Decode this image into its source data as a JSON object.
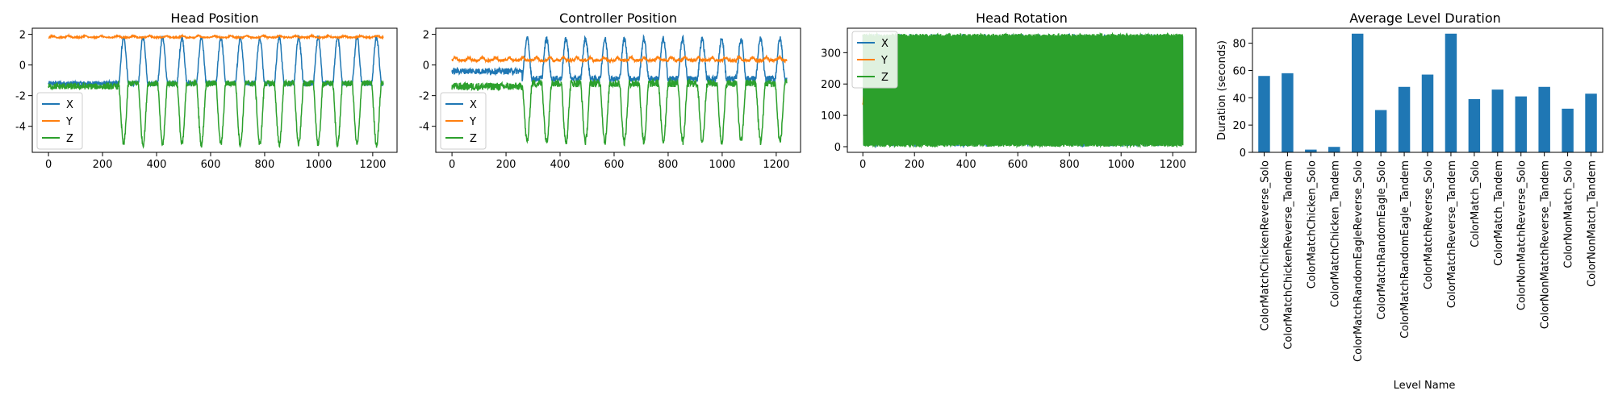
{
  "colors": {
    "X": "#1f77b4",
    "Y": "#ff7f0e",
    "Z": "#2ca02c",
    "bar": "#1f77b4"
  },
  "chart_data": [
    {
      "type": "line",
      "title": "Head Position",
      "xlabel": "",
      "ylabel": "",
      "xlim": [
        -60,
        1290
      ],
      "ylim": [
        -5.7,
        2.4
      ],
      "xticks": [
        0,
        200,
        400,
        600,
        800,
        1000,
        1200
      ],
      "yticks": [
        2,
        0,
        -2,
        -4
      ],
      "legend": "lower-left",
      "series": [
        {
          "name": "X",
          "pattern": {
            "baseline": -1.2,
            "amp": 3.0,
            "period": 72,
            "start": 260,
            "noise": 0.15,
            "pre": -1.2
          },
          "x": [
            0,
            100,
            200,
            260,
            290,
            330,
            370,
            400,
            500,
            600,
            700,
            800,
            900,
            1000,
            1100,
            1200,
            1230
          ],
          "y": [
            -1.2,
            -1.3,
            -1.1,
            -1.0,
            1.9,
            -0.8,
            1.5,
            -1.0,
            1.9,
            -0.8,
            1.6,
            -1.0,
            1.7,
            -0.9,
            1.6,
            0.4,
            -1.2
          ]
        },
        {
          "name": "Y",
          "pattern": {
            "baseline": 1.8,
            "amp": 0.1,
            "period": 60,
            "start": 0,
            "noise": 0.04,
            "pre": 1.8
          },
          "x": [
            0,
            200,
            400,
            600,
            800,
            1000,
            1200,
            1230
          ],
          "y": [
            1.8,
            1.85,
            1.85,
            1.9,
            1.85,
            1.85,
            1.8,
            1.8
          ]
        },
        {
          "name": "Z",
          "pattern": {
            "baseline": -1.2,
            "amp": -4.0,
            "period": 72,
            "start": 260,
            "noise": 0.2,
            "pre": -1.4
          },
          "x": [
            0,
            100,
            200,
            260,
            300,
            340,
            380,
            440,
            500,
            600,
            700,
            800,
            900,
            1000,
            1100,
            1200,
            1230
          ],
          "y": [
            -0.5,
            -1.4,
            -1.3,
            -1.3,
            -5.0,
            -1.0,
            -5.0,
            -1.3,
            -5.3,
            -1.2,
            -5.1,
            -1.2,
            -5.2,
            -1.3,
            -5.3,
            -4.8,
            -1.2
          ]
        }
      ]
    },
    {
      "type": "line",
      "title": "Controller Position",
      "xlabel": "",
      "ylabel": "",
      "xlim": [
        -60,
        1290
      ],
      "ylim": [
        -5.7,
        2.4
      ],
      "xticks": [
        0,
        200,
        400,
        600,
        800,
        1000,
        1200
      ],
      "yticks": [
        2,
        0,
        -2,
        -4
      ],
      "legend": "lower-left",
      "series": [
        {
          "name": "X",
          "pattern": {
            "baseline": -0.9,
            "amp": 2.6,
            "period": 72,
            "start": 260,
            "noise": 0.2,
            "pre": -0.4
          },
          "x": [
            0,
            100,
            200,
            280,
            320,
            400,
            500,
            600,
            700,
            800,
            900,
            1000,
            1100,
            1200,
            1230
          ],
          "y": [
            -1.2,
            -0.5,
            -0.3,
            1.9,
            -0.6,
            1.4,
            -0.8,
            1.6,
            -0.8,
            1.7,
            -0.7,
            1.5,
            -0.8,
            1.0,
            -1.2
          ]
        },
        {
          "name": "Y",
          "pattern": {
            "baseline": 0.3,
            "amp": 0.2,
            "period": 50,
            "start": 0,
            "noise": 0.08,
            "pre": 0.5
          },
          "x": [
            0,
            200,
            400,
            600,
            800,
            1000,
            1200,
            1230
          ],
          "y": [
            0.5,
            0.6,
            0.3,
            0.3,
            0.3,
            0.2,
            0.5,
            0.1
          ]
        },
        {
          "name": "Z",
          "pattern": {
            "baseline": -1.2,
            "amp": -3.8,
            "period": 72,
            "start": 260,
            "noise": 0.25,
            "pre": -1.4
          },
          "x": [
            0,
            100,
            200,
            280,
            320,
            400,
            500,
            600,
            700,
            800,
            900,
            1000,
            1100,
            1200,
            1230
          ],
          "y": [
            -1.3,
            -1.5,
            -1.3,
            -4.8,
            -1.1,
            -4.9,
            -1.0,
            -5.0,
            -1.1,
            -5.0,
            -1.2,
            -5.2,
            -1.1,
            -5.0,
            -1.1
          ]
        }
      ]
    },
    {
      "type": "line",
      "title": "Head Rotation",
      "xlabel": "",
      "ylabel": "",
      "xlim": [
        -60,
        1290
      ],
      "ylim": [
        -18,
        378
      ],
      "xticks": [
        0,
        200,
        400,
        600,
        800,
        1000,
        1200
      ],
      "yticks": [
        300,
        200,
        100,
        0
      ],
      "legend": "upper-left",
      "series": [
        {
          "name": "X",
          "pattern": {
            "kind": "wrap",
            "low": [
              0,
              60
            ],
            "high": [
              300,
              360
            ],
            "start": 0
          },
          "x": [
            0,
            50,
            100,
            200,
            400,
            600,
            800,
            1000,
            1100,
            1200,
            1230
          ],
          "y": [
            40,
            50,
            20,
            10,
            5,
            10,
            5,
            10,
            350,
            10,
            30
          ]
        },
        {
          "name": "Y",
          "pattern": {
            "kind": "wander",
            "center": 150,
            "spread": 60,
            "start": 0
          },
          "x": [
            0,
            100,
            200,
            400,
            500,
            600,
            800,
            1000,
            1200,
            1230
          ],
          "y": [
            170,
            100,
            130,
            150,
            190,
            150,
            170,
            150,
            140,
            160
          ]
        },
        {
          "name": "Z",
          "pattern": {
            "kind": "wrap",
            "low": [
              0,
              10
            ],
            "high": [
              350,
              360
            ],
            "start": 0
          },
          "x": [
            0,
            100,
            200,
            400,
            600,
            800,
            1000,
            1200,
            1230
          ],
          "y": [
            360,
            0,
            360,
            0,
            360,
            0,
            360,
            0,
            40
          ]
        }
      ]
    },
    {
      "type": "bar",
      "title": "Average Level Duration",
      "xlabel": "Level Name",
      "ylabel": "Duration (seconds)",
      "ylim": [
        0,
        91
      ],
      "yticks": [
        0,
        20,
        40,
        60,
        80
      ],
      "categories": [
        "ColorMatchChickenReverse_Solo",
        "ColorMatchChickenReverse_Tandem",
        "ColorMatchChicken_Solo",
        "ColorMatchChicken_Tandem",
        "ColorMatchRandomEagleReverse_Solo",
        "ColorMatchRandomEagle_Solo",
        "ColorMatchRandomEagle_Tandem",
        "ColorMatchReverse_Solo",
        "ColorMatchReverse_Tandem",
        "ColorMatch_Solo",
        "ColorMatch_Tandem",
        "ColorNonMatchReverse_Solo",
        "ColorNonMatchReverse_Tandem",
        "ColorNonMatch_Solo",
        "ColorNonMatch_Tandem"
      ],
      "values": [
        56,
        58,
        2,
        4,
        87,
        31,
        48,
        57,
        87,
        39,
        46,
        41,
        48,
        32,
        43
      ]
    }
  ]
}
